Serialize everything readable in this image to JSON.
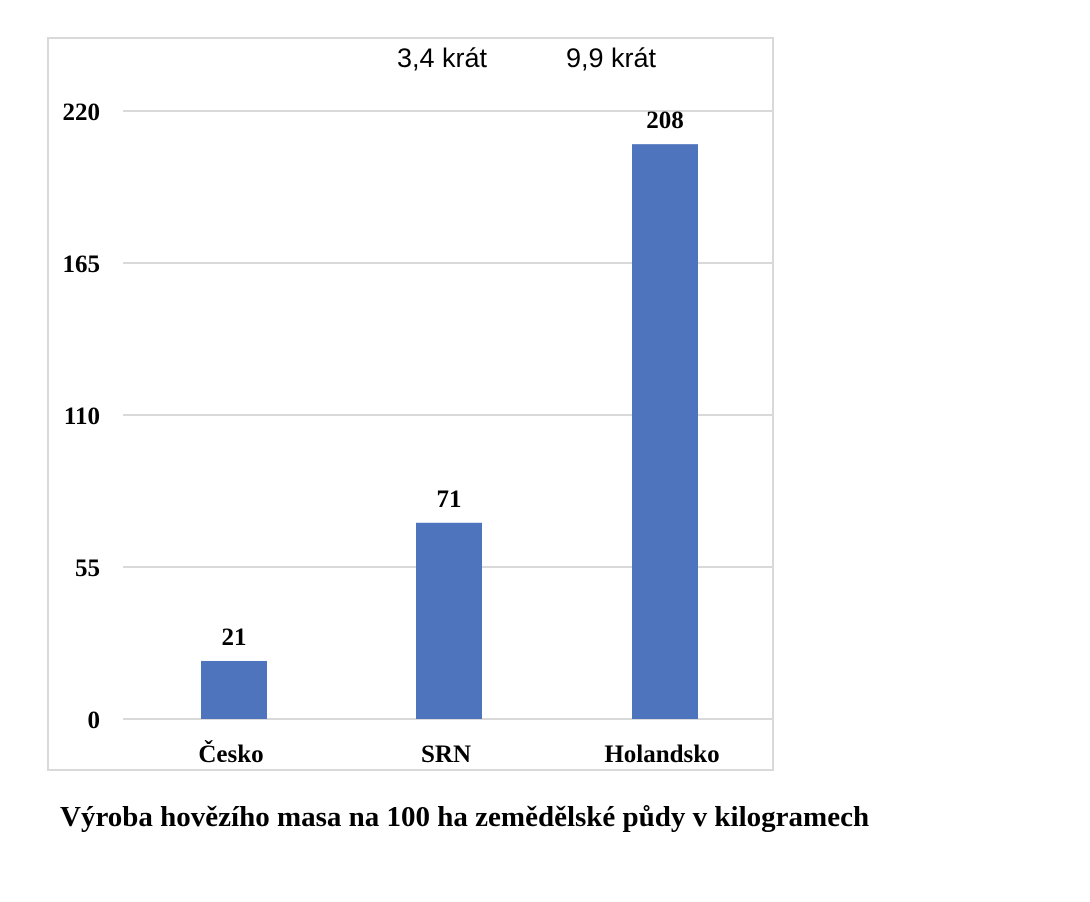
{
  "chart_data": {
    "type": "bar",
    "categories": [
      "Česko",
      "SRN",
      "Holandsko"
    ],
    "values": [
      21,
      71,
      208
    ],
    "data_labels": [
      "21",
      "71",
      "208"
    ],
    "yticks": [
      0,
      55,
      110,
      165,
      220
    ],
    "ytick_labels": [
      "0",
      "55",
      "110",
      "165",
      "220"
    ],
    "ylim": [
      0,
      220
    ],
    "grid": true,
    "bar_color": "#4f74be",
    "grid_color": "#d9d9d9",
    "annotations": [
      {
        "text": "3,4 krát",
        "category_index": 1
      },
      {
        "text": "9,9 krát",
        "category_index": 2
      }
    ],
    "caption": "Výroba  hovězího masa na 100 ha zemědělské půdy v kilogramech"
  }
}
